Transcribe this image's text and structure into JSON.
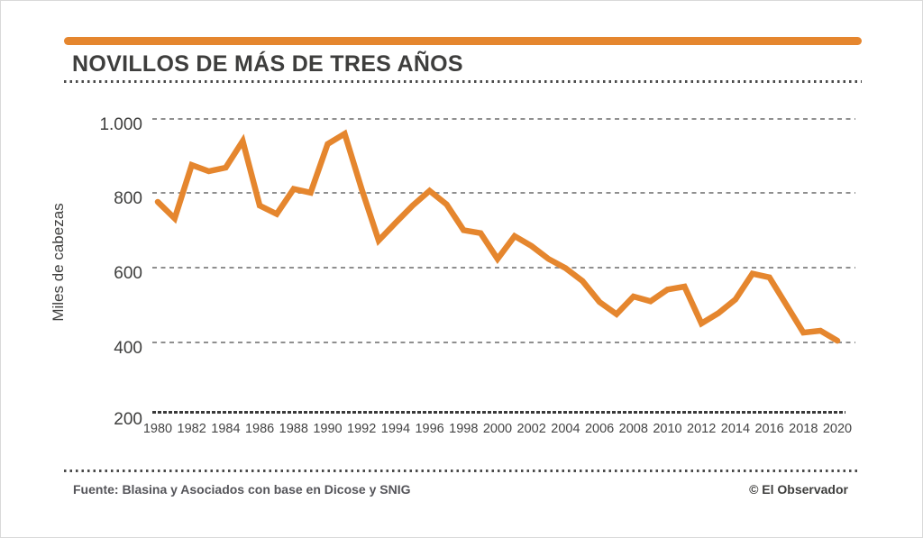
{
  "header": {
    "title": "NOVILLOS DE MÁS DE TRES AÑOS"
  },
  "chart_data": {
    "type": "line",
    "title": "NOVILLOS DE MÁS DE TRES AÑOS",
    "xlabel": "",
    "ylabel": "Miles de cabezas",
    "ylim": [
      200,
      1000
    ],
    "grid": "horizontal-dashed",
    "legend": "none",
    "line_color": "#E5862E",
    "x": [
      1980,
      1981,
      1982,
      1983,
      1984,
      1985,
      1986,
      1987,
      1988,
      1989,
      1990,
      1991,
      1992,
      1993,
      1994,
      1995,
      1996,
      1997,
      1998,
      1999,
      2000,
      2001,
      2002,
      2003,
      2004,
      2005,
      2006,
      2007,
      2008,
      2009,
      2010,
      2011,
      2012,
      2013,
      2014,
      2015,
      2016,
      2017,
      2018,
      2019,
      2020
    ],
    "values": [
      775,
      730,
      875,
      858,
      868,
      940,
      765,
      742,
      810,
      800,
      932,
      960,
      810,
      670,
      718,
      765,
      805,
      768,
      698,
      690,
      620,
      682,
      655,
      620,
      595,
      560,
      503,
      470,
      518,
      505,
      537,
      545,
      445,
      473,
      510,
      580,
      570,
      495,
      420,
      425,
      398
    ],
    "x_tick_labels": [
      "1980",
      "1982",
      "1984",
      "1986",
      "1988",
      "1990",
      "1992",
      "1994",
      "1996",
      "1998",
      "2000",
      "2002",
      "2004",
      "2006",
      "2008",
      "2010",
      "2012",
      "2014",
      "2016",
      "2018",
      "2020"
    ],
    "y_tick_labels": [
      "1.000",
      "800",
      "600",
      "400",
      "200"
    ]
  },
  "footer": {
    "source": "Fuente: Blasina y Asociados con base en Dicose y SNIG",
    "copyright": "© El Observador"
  },
  "colors": {
    "accent_orange": "#E5862E",
    "title_gray": "#3E3E3D",
    "grid_gray": "#8F8F8F"
  }
}
